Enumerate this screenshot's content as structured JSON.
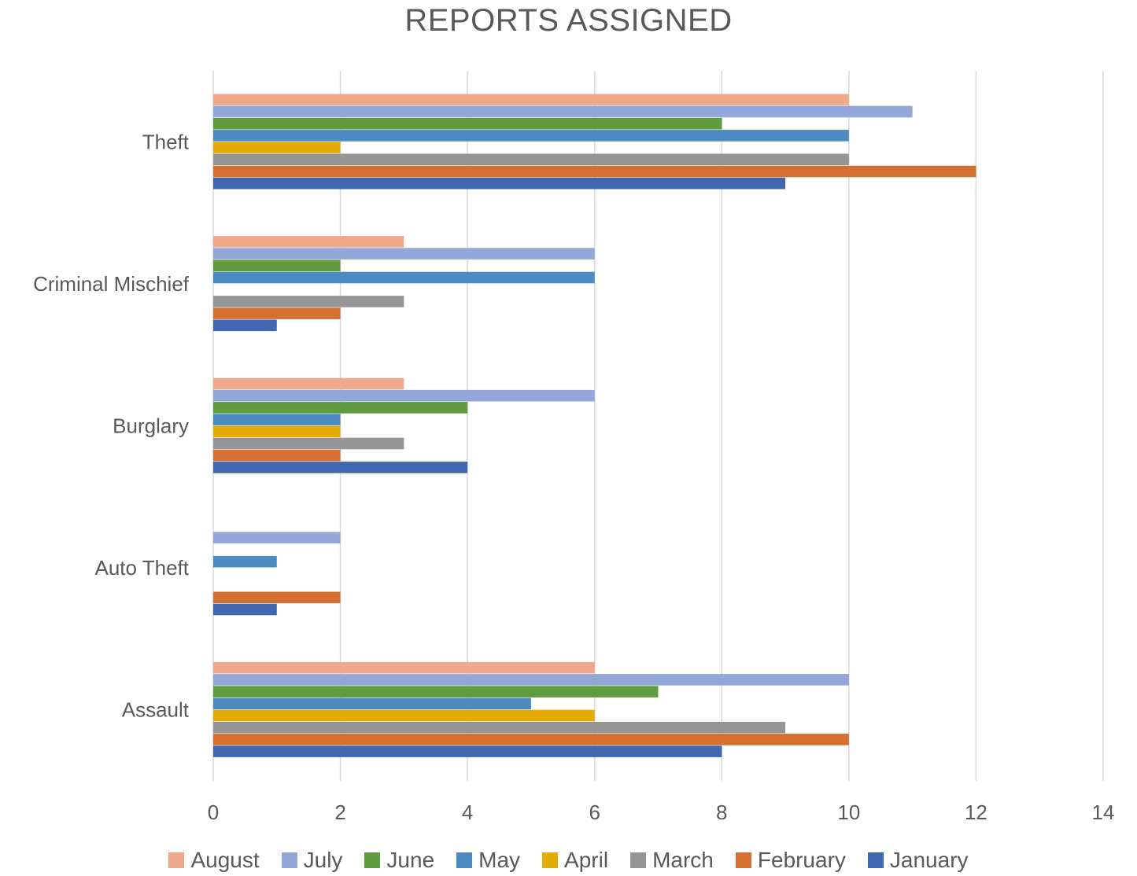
{
  "chart_data": {
    "type": "bar",
    "orientation": "horizontal",
    "title": "REPORTS ASSIGNED",
    "xlabel": "",
    "ylabel": "",
    "categories": [
      "Assault",
      "Auto Theft",
      "Burglary",
      "Criminal Mischief",
      "Theft"
    ],
    "xlim": [
      0,
      14
    ],
    "x_ticks": [
      "0",
      "2",
      "4",
      "6",
      "8",
      "10",
      "12",
      "14"
    ],
    "grid": "vertical",
    "legend_position": "bottom",
    "series": [
      {
        "name": "January",
        "color": "#4167B0",
        "values": [
          8,
          1,
          4,
          1,
          9
        ]
      },
      {
        "name": "February",
        "color": "#D57030",
        "values": [
          10,
          2,
          2,
          2,
          12
        ]
      },
      {
        "name": "March",
        "color": "#959595",
        "values": [
          9,
          0,
          3,
          3,
          10
        ]
      },
      {
        "name": "April",
        "color": "#E4AC07",
        "values": [
          6,
          0,
          2,
          0,
          2
        ]
      },
      {
        "name": "May",
        "color": "#4B8BC2",
        "values": [
          5,
          1,
          2,
          6,
          10
        ]
      },
      {
        "name": "June",
        "color": "#609C3F",
        "values": [
          7,
          0,
          4,
          2,
          8
        ]
      },
      {
        "name": "July",
        "color": "#93A8D9",
        "values": [
          10,
          2,
          6,
          6,
          11
        ]
      },
      {
        "name": "August",
        "color": "#F0A98B",
        "values": [
          6,
          0,
          3,
          3,
          10
        ]
      }
    ],
    "legend_order": [
      "August",
      "July",
      "June",
      "May",
      "April",
      "March",
      "February",
      "January"
    ]
  }
}
